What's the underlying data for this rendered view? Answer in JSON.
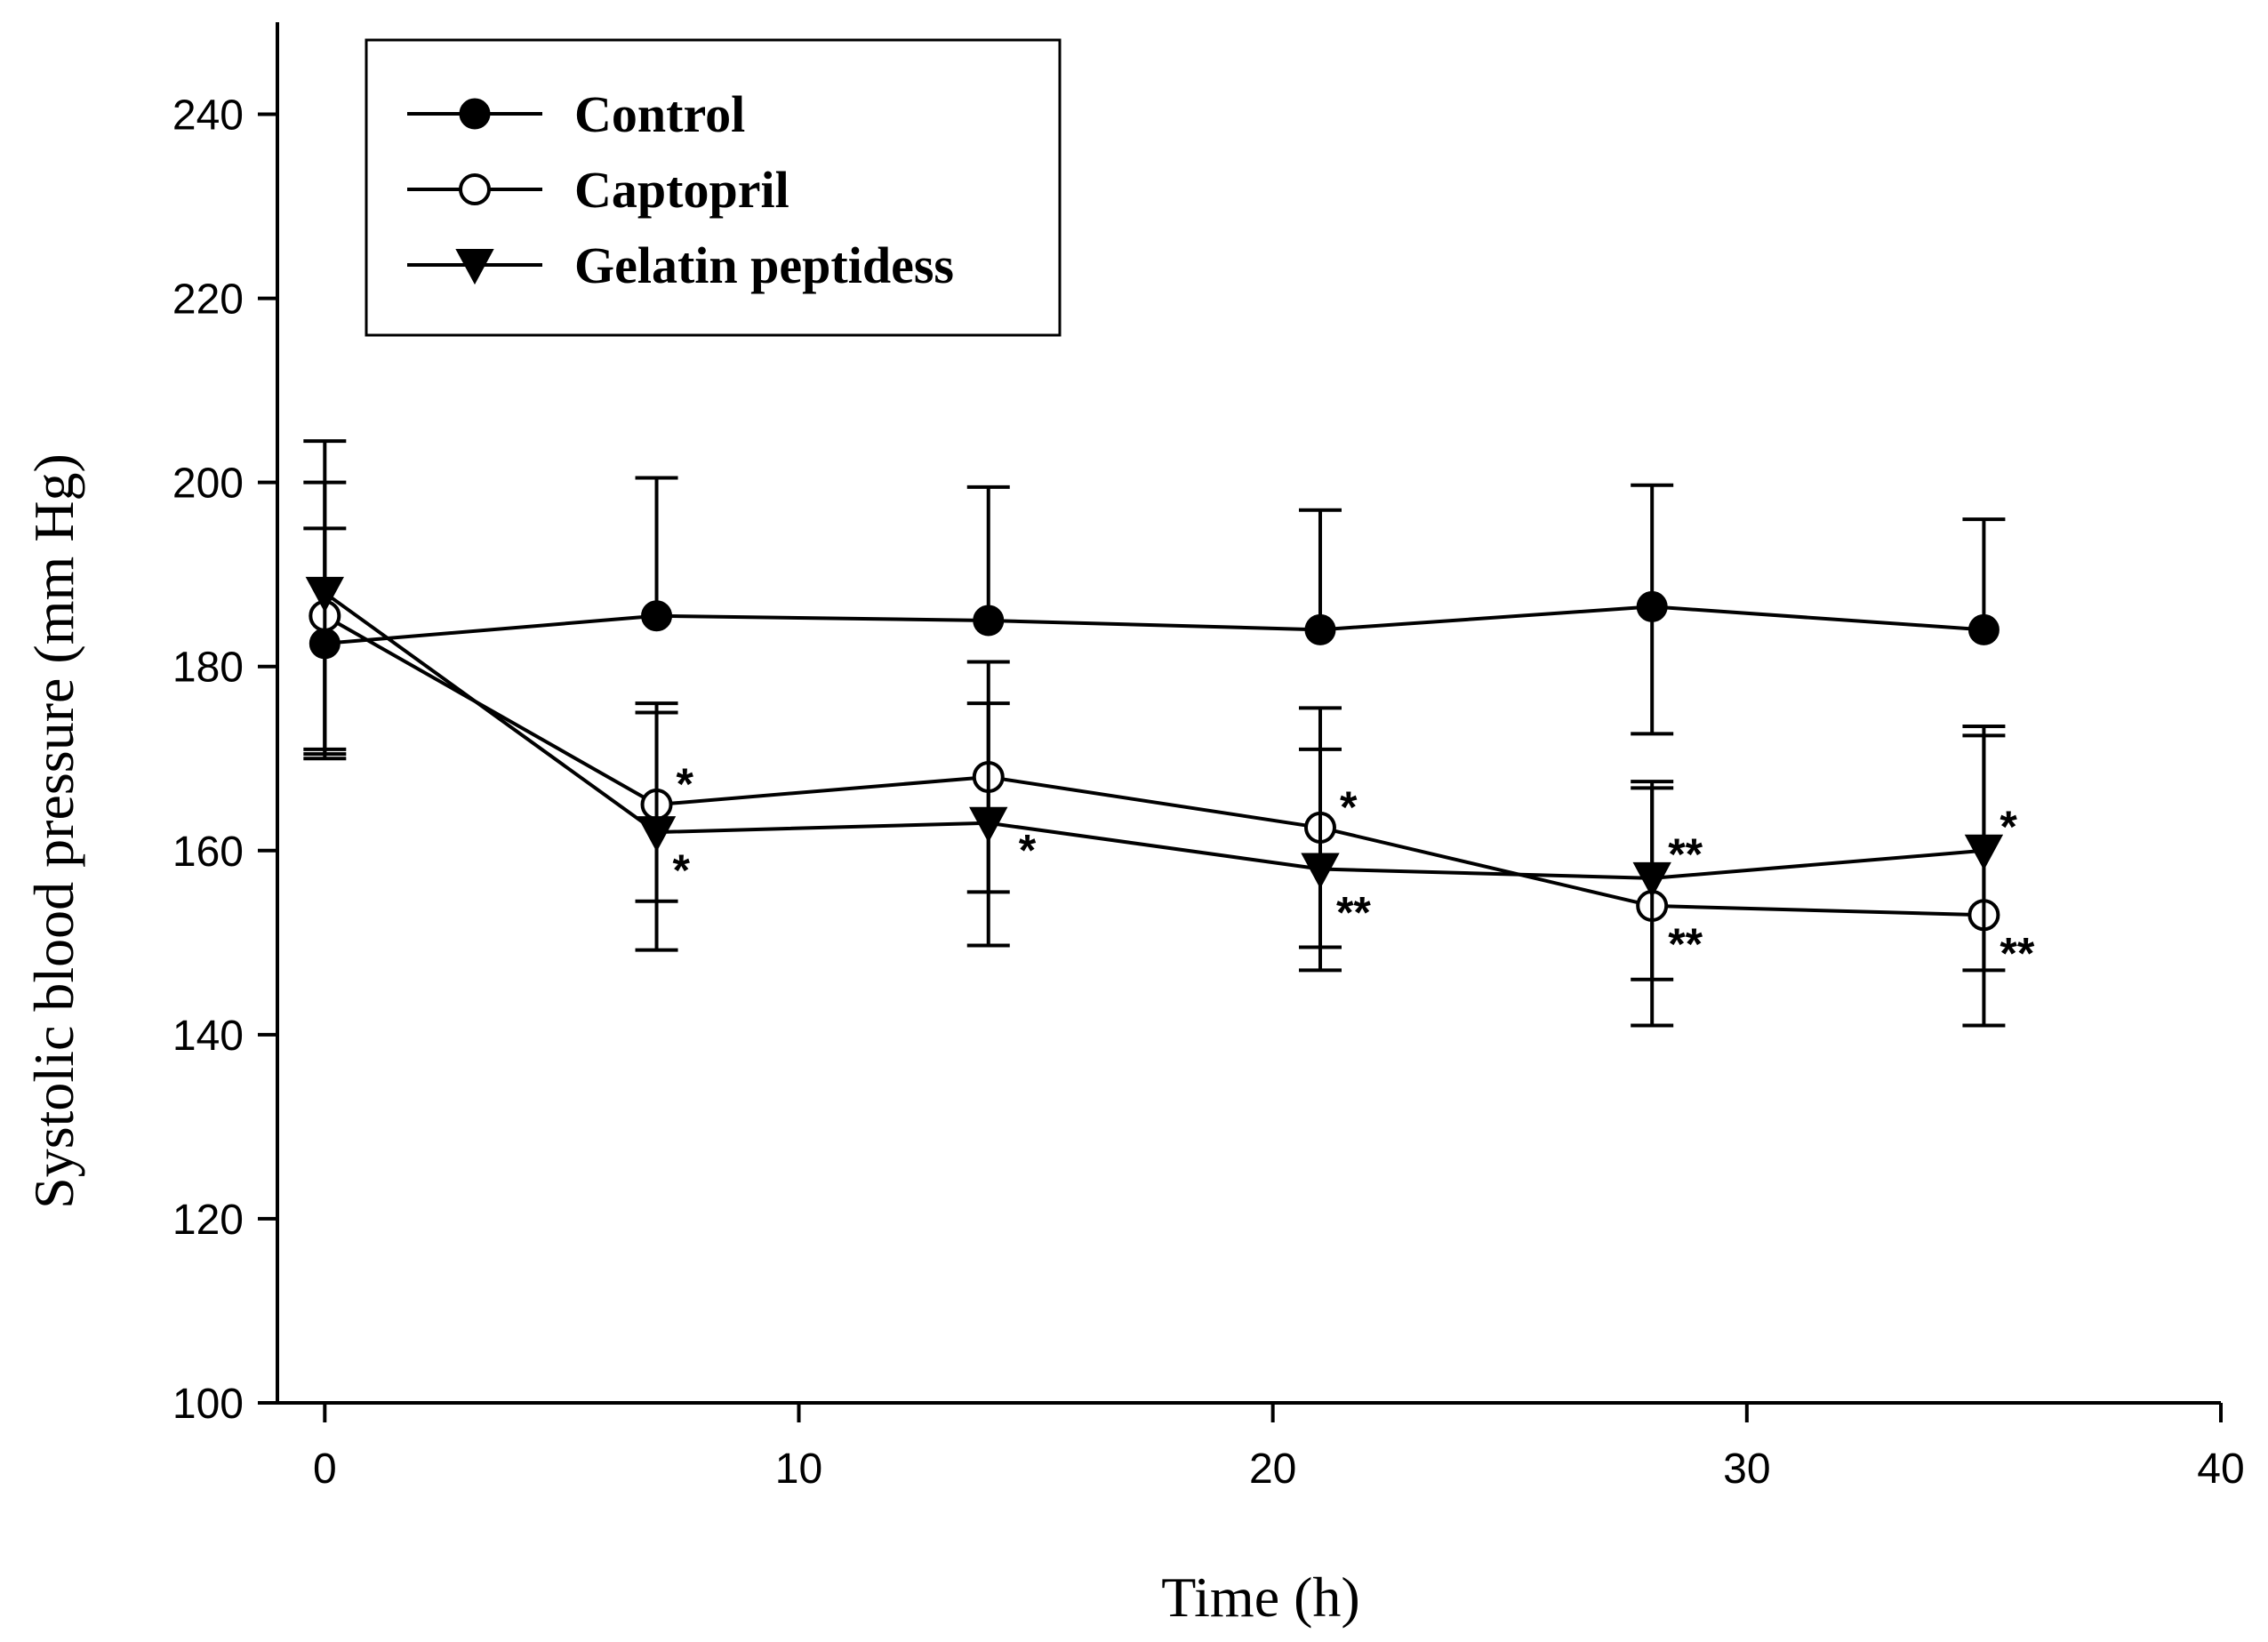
{
  "chart_data": {
    "type": "line",
    "title": "",
    "xlabel": "Time (h)",
    "ylabel": "Systolic blood pressure (mm Hg)",
    "xlim": [
      -1,
      40
    ],
    "ylim": [
      100,
      250
    ],
    "xticks": [
      0,
      10,
      20,
      30,
      40
    ],
    "yticks": [
      100,
      120,
      140,
      160,
      180,
      200,
      220,
      240
    ],
    "x": [
      0,
      7,
      14,
      21,
      28,
      35
    ],
    "legend_position": "top-left",
    "series": [
      {
        "name": "Control",
        "marker": "filled-circle",
        "values": [
          182.5,
          185.5,
          185,
          184,
          186.5,
          184
        ],
        "err_upper": [
          200,
          200.5,
          199.5,
          197,
          199.7,
          196
        ],
        "err_lower": [
          170.5,
          null,
          null,
          null,
          172.7,
          null
        ],
        "annotations": [
          "",
          "",
          "",
          "",
          "",
          ""
        ]
      },
      {
        "name": "Captopril",
        "marker": "open-circle",
        "values": [
          185.5,
          165,
          168,
          162.5,
          154,
          153
        ],
        "err_upper": [
          195,
          175,
          180.5,
          175.5,
          167.5,
          172.5
        ],
        "err_lower": [
          171,
          154.5,
          155.5,
          149.5,
          141,
          141
        ],
        "annotations": [
          "",
          "*",
          "",
          "*",
          "**",
          "**"
        ]
      },
      {
        "name": "Gelatin peptidess",
        "marker": "filled-down-triangle",
        "values": [
          188,
          162,
          163,
          158,
          157,
          160
        ],
        "err_upper": [
          204.5,
          176,
          176,
          171,
          166.8,
          173.5
        ],
        "err_lower": [
          170,
          149.2,
          149.7,
          147,
          146,
          147
        ],
        "annotations": [
          "",
          "*",
          "*",
          "**",
          "**",
          "*"
        ]
      }
    ]
  }
}
